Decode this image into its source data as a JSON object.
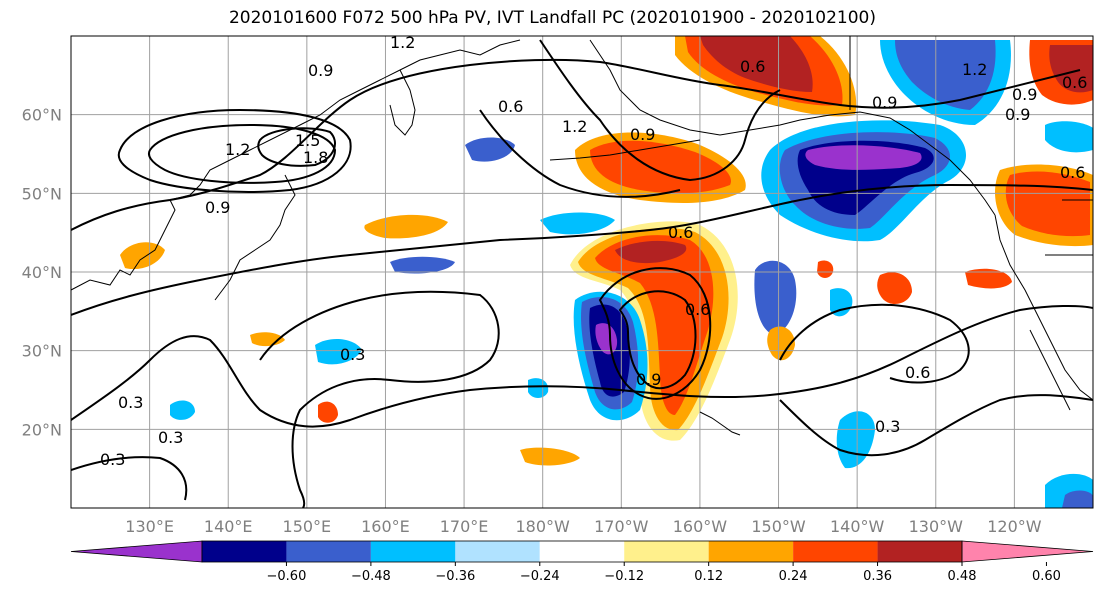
{
  "title": "2020101600 F072 500 hPa PV, IVT Landfall PC (2020101900 - 2020102100)",
  "map": {
    "lon_range": [
      120,
      250
    ],
    "lat_range": [
      10,
      70
    ],
    "lon_ticks": [
      {
        "lon": 130,
        "label": "130°E"
      },
      {
        "lon": 140,
        "label": "140°E"
      },
      {
        "lon": 150,
        "label": "150°E"
      },
      {
        "lon": 160,
        "label": "160°E"
      },
      {
        "lon": 170,
        "label": "170°E"
      },
      {
        "lon": 180,
        "label": "180°W"
      },
      {
        "lon": 190,
        "label": "170°W"
      },
      {
        "lon": 200,
        "label": "160°W"
      },
      {
        "lon": 210,
        "label": "150°W"
      },
      {
        "lon": 220,
        "label": "140°W"
      },
      {
        "lon": 230,
        "label": "130°W"
      },
      {
        "lon": 240,
        "label": "120°W"
      }
    ],
    "lat_ticks": [
      {
        "lat": 20,
        "label": "20°N"
      },
      {
        "lat": 30,
        "label": "30°N"
      },
      {
        "lat": 40,
        "label": "40°N"
      },
      {
        "lat": 50,
        "label": "50°N"
      },
      {
        "lat": 60,
        "label": "60°N"
      }
    ],
    "grid": true
  },
  "contour_labels": [
    "0.9",
    "1.2",
    "1.5",
    "1.8",
    "0.9",
    "0.6",
    "1.2",
    "0.6",
    "0.9",
    "0.6",
    "1.2",
    "0.9",
    "0.6",
    "0.6",
    "0.6",
    "0.9",
    "0.3",
    "0.3",
    "0.3",
    "0.3",
    "0.6",
    "0.3",
    "0.9",
    "0.9",
    "1.2"
  ],
  "colorbar": {
    "colors": [
      "#9a32cd",
      "#00008b",
      "#3a5fcd",
      "#00bfff",
      "#b0e2ff",
      "#ffffff",
      "#fff08c",
      "#ffa500",
      "#ff4500",
      "#b22222",
      "#ff83ac"
    ],
    "tick_labels": [
      "−0.60",
      "−0.48",
      "−0.36",
      "−0.24",
      "−0.12",
      "0.12",
      "0.24",
      "0.36",
      "0.48",
      "0.60"
    ]
  }
}
